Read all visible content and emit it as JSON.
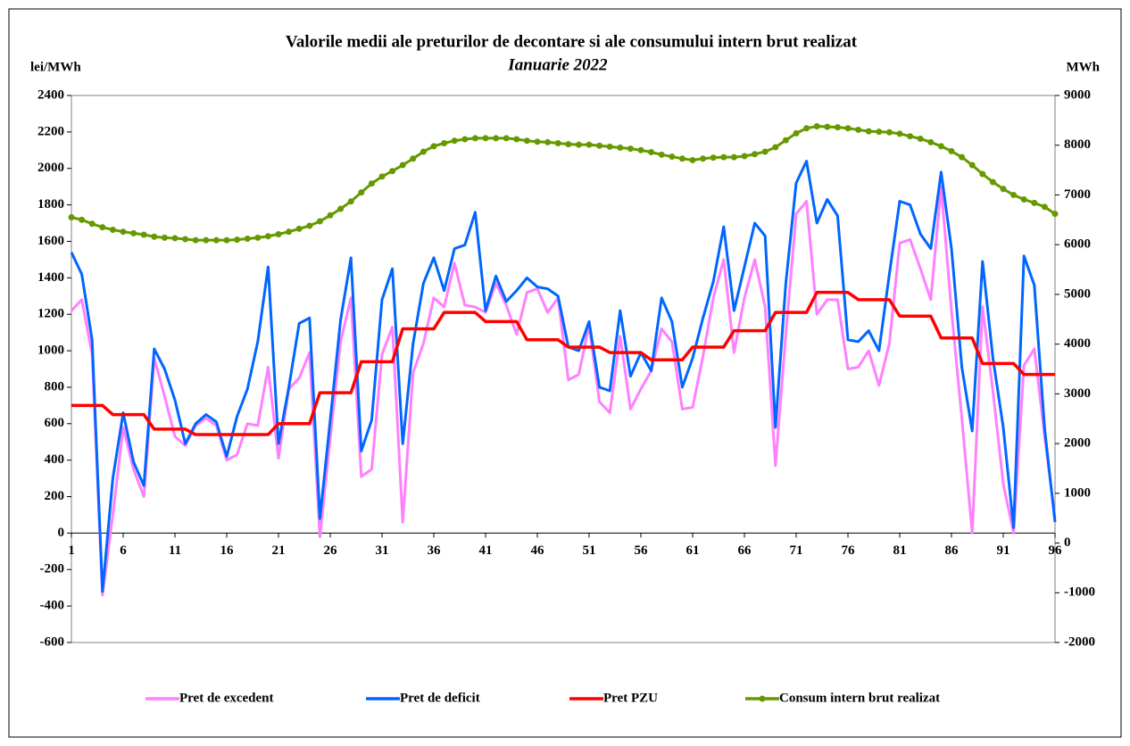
{
  "chart_data": {
    "type": "line",
    "title": "Valorile medii ale preturilor de decontare si ale consumului intern brut realizat",
    "subtitle": "Ianuarie 2022",
    "y_label": "lei/MWh",
    "y2_label": "MWh",
    "x": [
      1,
      2,
      3,
      4,
      5,
      6,
      7,
      8,
      9,
      10,
      11,
      12,
      13,
      14,
      15,
      16,
      17,
      18,
      19,
      20,
      21,
      22,
      23,
      24,
      25,
      26,
      27,
      28,
      29,
      30,
      31,
      32,
      33,
      34,
      35,
      36,
      37,
      38,
      39,
      40,
      41,
      42,
      43,
      44,
      45,
      46,
      47,
      48,
      49,
      50,
      51,
      52,
      53,
      54,
      55,
      56,
      57,
      58,
      59,
      60,
      61,
      62,
      63,
      64,
      65,
      66,
      67,
      68,
      69,
      70,
      71,
      72,
      73,
      74,
      75,
      76,
      77,
      78,
      79,
      80,
      81,
      82,
      83,
      84,
      85,
      86,
      87,
      88,
      89,
      90,
      91,
      92,
      93,
      94,
      95,
      96
    ],
    "xlim": [
      1,
      96
    ],
    "xticks": [
      1,
      6,
      11,
      16,
      21,
      26,
      31,
      36,
      41,
      46,
      51,
      56,
      61,
      66,
      71,
      76,
      81,
      86,
      91,
      96
    ],
    "ylim": [
      -600,
      2400
    ],
    "yticks": [
      -600,
      -400,
      -200,
      0,
      200,
      400,
      600,
      800,
      1000,
      1200,
      1400,
      1600,
      1800,
      2000,
      2200,
      2400
    ],
    "y2lim": [
      -2000,
      9000
    ],
    "y2ticks": [
      -2000,
      -1000,
      0,
      1000,
      2000,
      3000,
      4000,
      5000,
      6000,
      7000,
      8000,
      9000
    ],
    "series": [
      {
        "name": "Pret de excedent",
        "color": "#ff80ff",
        "values": [
          1220,
          1280,
          980,
          -340,
          100,
          580,
          350,
          200,
          960,
          750,
          530,
          480,
          590,
          630,
          590,
          400,
          430,
          600,
          590,
          910,
          410,
          790,
          850,
          990,
          -20,
          520,
          1050,
          1290,
          310,
          350,
          980,
          1130,
          60,
          880,
          1040,
          1290,
          1240,
          1480,
          1250,
          1240,
          1210,
          1370,
          1250,
          1090,
          1320,
          1340,
          1210,
          1290,
          840,
          870,
          1140,
          720,
          660,
          1080,
          680,
          790,
          890,
          1120,
          1050,
          680,
          690,
          970,
          1290,
          1500,
          990,
          1290,
          1500,
          1240,
          370,
          1090,
          1750,
          1820,
          1200,
          1280,
          1280,
          900,
          910,
          1000,
          810,
          1040,
          1590,
          1610,
          1450,
          1280,
          1900,
          1220,
          630,
          0,
          1240,
          780,
          270,
          0,
          920,
          1010,
          530,
          80
        ]
      },
      {
        "name": "Pret de deficit",
        "color": "#0066ff",
        "values": [
          1540,
          1420,
          1060,
          -320,
          300,
          660,
          390,
          260,
          1010,
          900,
          730,
          490,
          600,
          650,
          610,
          420,
          640,
          790,
          1050,
          1460,
          490,
          800,
          1150,
          1180,
          80,
          620,
          1170,
          1510,
          450,
          620,
          1280,
          1450,
          490,
          1040,
          1370,
          1510,
          1330,
          1560,
          1580,
          1760,
          1220,
          1410,
          1270,
          1330,
          1400,
          1350,
          1340,
          1300,
          1020,
          1000,
          1160,
          800,
          780,
          1220,
          860,
          990,
          890,
          1290,
          1160,
          800,
          960,
          1180,
          1380,
          1680,
          1220,
          1460,
          1700,
          1630,
          580,
          1370,
          1920,
          2040,
          1700,
          1830,
          1740,
          1060,
          1050,
          1110,
          1000,
          1420,
          1820,
          1800,
          1640,
          1560,
          1980,
          1560,
          910,
          560,
          1490,
          960,
          580,
          30,
          1520,
          1360,
          570,
          60
        ]
      },
      {
        "name": "Pret PZU",
        "color": "#ff0000",
        "values": [
          700,
          700,
          700,
          700,
          650,
          650,
          650,
          650,
          570,
          570,
          570,
          570,
          540,
          540,
          540,
          540,
          540,
          540,
          540,
          540,
          600,
          600,
          600,
          600,
          770,
          770,
          770,
          770,
          940,
          940,
          940,
          940,
          1120,
          1120,
          1120,
          1120,
          1210,
          1210,
          1210,
          1210,
          1160,
          1160,
          1160,
          1160,
          1060,
          1060,
          1060,
          1060,
          1020,
          1020,
          1020,
          1020,
          990,
          990,
          990,
          990,
          950,
          950,
          950,
          950,
          1020,
          1020,
          1020,
          1020,
          1110,
          1110,
          1110,
          1110,
          1210,
          1210,
          1210,
          1210,
          1320,
          1320,
          1320,
          1320,
          1280,
          1280,
          1280,
          1280,
          1190,
          1190,
          1190,
          1190,
          1070,
          1070,
          1070,
          1070,
          930,
          930,
          930,
          930,
          870,
          870,
          870,
          870
        ]
      },
      {
        "name": "Consum intern brut realizat",
        "color": "#669900",
        "axis": "y2",
        "markers": true,
        "values": [
          6550,
          6500,
          6420,
          6350,
          6300,
          6260,
          6230,
          6200,
          6160,
          6140,
          6130,
          6110,
          6090,
          6090,
          6090,
          6090,
          6100,
          6120,
          6140,
          6170,
          6210,
          6260,
          6320,
          6380,
          6470,
          6590,
          6720,
          6870,
          7050,
          7230,
          7370,
          7480,
          7600,
          7730,
          7870,
          7980,
          8040,
          8090,
          8120,
          8140,
          8140,
          8140,
          8140,
          8120,
          8090,
          8070,
          8060,
          8040,
          8020,
          8010,
          8010,
          7990,
          7970,
          7950,
          7930,
          7900,
          7860,
          7810,
          7770,
          7730,
          7700,
          7730,
          7750,
          7760,
          7760,
          7780,
          7820,
          7870,
          7960,
          8100,
          8240,
          8340,
          8380,
          8370,
          8360,
          8340,
          8310,
          8280,
          8270,
          8260,
          8230,
          8180,
          8130,
          8060,
          7980,
          7880,
          7760,
          7600,
          7420,
          7260,
          7120,
          7000,
          6910,
          6840,
          6760,
          6620
        ]
      }
    ]
  }
}
